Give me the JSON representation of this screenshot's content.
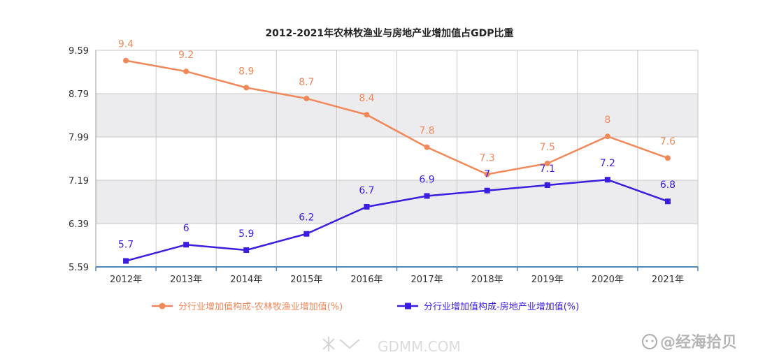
{
  "chart_data": {
    "type": "line",
    "title": "2012-2021年农林牧渔业与房地产业增加值占GDP比重",
    "categories": [
      "2012年",
      "2013年",
      "2014年",
      "2015年",
      "2016年",
      "2017年",
      "2018年",
      "2019年",
      "2020年",
      "2021年"
    ],
    "y_ticks": [
      "5.59",
      "6.39",
      "7.19",
      "7.99",
      "8.79",
      "9.59"
    ],
    "ylim": [
      5.59,
      9.59
    ],
    "grid": true,
    "legend_position": "bottom",
    "series": [
      {
        "name": "分行业增加值构成-农林牧渔业增加值(%)",
        "color": "#f0885a",
        "marker": "circle",
        "values": [
          9.4,
          9.2,
          8.9,
          8.7,
          8.4,
          7.8,
          7.3,
          7.5,
          8,
          7.6
        ],
        "labels": [
          "9.4",
          "9.2",
          "8.9",
          "8.7",
          "8.4",
          "7.8",
          "7.3",
          "7.5",
          "8",
          "7.6"
        ]
      },
      {
        "name": "分行业增加值构成-房地产业增加值(%)",
        "color": "#3a1ee0",
        "marker": "square",
        "values": [
          5.7,
          6,
          5.9,
          6.2,
          6.7,
          6.9,
          7,
          7.1,
          7.2,
          6.8
        ],
        "labels": [
          "5.7",
          "6",
          "5.9",
          "6.2",
          "6.7",
          "6.9",
          "7",
          "7.1",
          "7.2",
          "6.8"
        ]
      }
    ]
  },
  "watermarks": {
    "left": "GDMM.COM",
    "right": "@经海拾贝"
  },
  "colors": {
    "band_gray": "#ececee",
    "band_white": "#ffffff",
    "grid": "#c8c8c8",
    "axis": "#4f86b8"
  }
}
